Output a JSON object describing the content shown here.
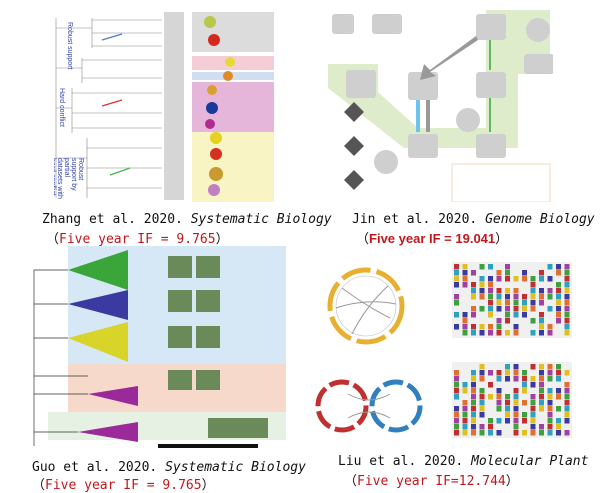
{
  "panels": [
    {
      "authors": "Zhang et al. 2020.",
      "journal": "Systematic Biology",
      "if_open": "（",
      "if_text": "Five year IF = 9.765",
      "if_close": "）",
      "annotations": [
        "Robust support",
        "Hard conflict",
        "Robust support by partial datasets with hard conflict"
      ]
    },
    {
      "authors": "Jin et al. 2020.",
      "journal": "Genome Biology",
      "if_open": "（",
      "if_text": "Five year IF = 19.041",
      "if_close": "）"
    },
    {
      "authors": "Guo et al. 2020.",
      "journal": "Systematic Biology",
      "if_open": "（",
      "if_text": "Five year IF = 9.765",
      "if_close": "）"
    },
    {
      "authors": "Liu et al. 2020.",
      "journal": "Molecular Plant",
      "if_open": "（",
      "if_text": "Five year IF=12.744",
      "if_close": "）"
    }
  ],
  "colors": {
    "if_red": "#c0171c",
    "flow_green": "#dfeccb",
    "clade_pink": "#f3c9dd",
    "clade_yellow": "#f8f4c4",
    "clade_blue": "#d6e8f5"
  }
}
